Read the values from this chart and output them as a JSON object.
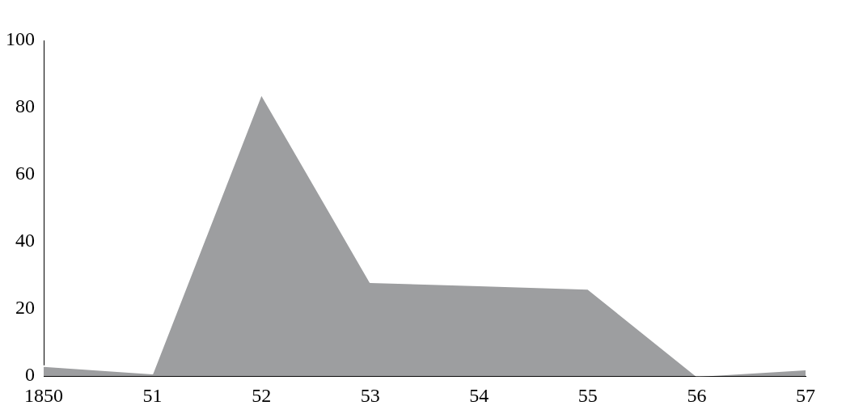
{
  "chart_data": {
    "type": "area",
    "categories": [
      "1850",
      "51",
      "52",
      "53",
      "54",
      "55",
      "56",
      "57"
    ],
    "series": [
      {
        "color": "#9d9ea0",
        "values": [
          3,
          0.8,
          84,
          28,
          27,
          26,
          0,
          2
        ]
      }
    ],
    "ylim": [
      0,
      100
    ],
    "yticks": [
      0,
      20,
      40,
      60,
      80,
      100
    ],
    "grid": false,
    "legend": false,
    "marker": "none"
  }
}
